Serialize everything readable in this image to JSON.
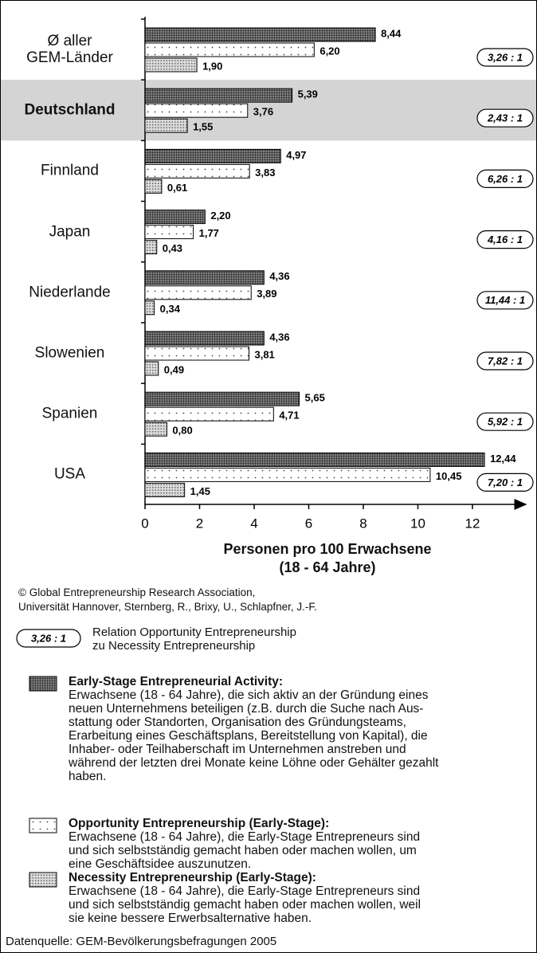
{
  "chart_data": {
    "type": "bar",
    "orientation": "horizontal",
    "categories": [
      "Ø aller\nGEM-Länder",
      "Deutschland",
      "Finnland",
      "Japan",
      "Niederlande",
      "Slowenien",
      "Spanien",
      "USA"
    ],
    "highlight_category": 1,
    "series": [
      {
        "name": "Early-Stage Entrepreneurial Activity:",
        "color": "#8c8c8c",
        "description": "Erwachsene (18 - 64 Jahre), die sich aktiv an der Gründung eines\nneuen Unternehmens beteiligen (z.B. durch die Suche nach Aus-\nstattung oder Standorten, Organisation des Gründungsteams,\nErarbeitung eines Geschäftsplans, Bereitstellung von Kapital), die\nInhaber- oder Teilhaberschaft im Unternehmen anstreben und\nwährend der letzten drei Monate keine Löhne oder Gehälter gezahlt\nhaben.",
        "values": [
          8.44,
          5.39,
          4.97,
          2.2,
          4.36,
          4.36,
          5.65,
          12.44
        ],
        "value_labels": [
          "8,44",
          "5,39",
          "4,97",
          "2,20",
          "4,36",
          "4,36",
          "5,65",
          "12,44"
        ]
      },
      {
        "name": "Opportunity Entrepreneurship (Early-Stage):",
        "color": "#ffffff",
        "description": "Erwachsene (18 - 64 Jahre), die Early-Stage Entrepreneurs sind\nund sich selbstständig gemacht haben oder machen wollen, um\neine Geschäftsidee auszunutzen.",
        "values": [
          6.2,
          3.76,
          3.83,
          1.77,
          3.89,
          3.81,
          4.71,
          10.45
        ],
        "value_labels": [
          "6,20",
          "3,76",
          "3,83",
          "1,77",
          "3,89",
          "3,81",
          "4,71",
          "10,45"
        ]
      },
      {
        "name": "Necessity Entrepreneurship (Early-Stage):",
        "color": "#dcdcdc",
        "description": "Erwachsene (18 - 64 Jahre), die Early-Stage Entrepreneurs sind\nund sich selbstständig gemacht haben oder machen wollen, weil\nsie keine bessere Erwerbsalternative haben.",
        "values": [
          1.9,
          1.55,
          0.61,
          0.43,
          0.34,
          0.49,
          0.8,
          1.45
        ],
        "value_labels": [
          "1,90",
          "1,55",
          "0,61",
          "0,43",
          "0,34",
          "0,49",
          "0,80",
          "1,45"
        ]
      }
    ],
    "ratios": [
      "3,26 : 1",
      "2,43 : 1",
      "6,26 : 1",
      "4,16 : 1",
      "11,44 : 1",
      "7,82 : 1",
      "5,92 : 1",
      "7,20 : 1"
    ],
    "xlim": [
      0,
      14
    ],
    "xticks": [
      0,
      2,
      4,
      6,
      8,
      10,
      12
    ],
    "xlabel": "Personen pro 100 Erwachsene\n(18 - 64 Jahre)",
    "copyright": "© Global Entrepreneurship Research Association,\n   Universität Hannover, Sternberg, R., Brixy, U., Schlapfner, J.-F.",
    "ratio_legend": {
      "label": "3,26 : 1",
      "text": "Relation Opportunity Entrepreneurship\nzu Necessity Entrepreneurship"
    },
    "source": "Datenquelle: GEM-Bevölkerungsbefragungen 2005"
  }
}
